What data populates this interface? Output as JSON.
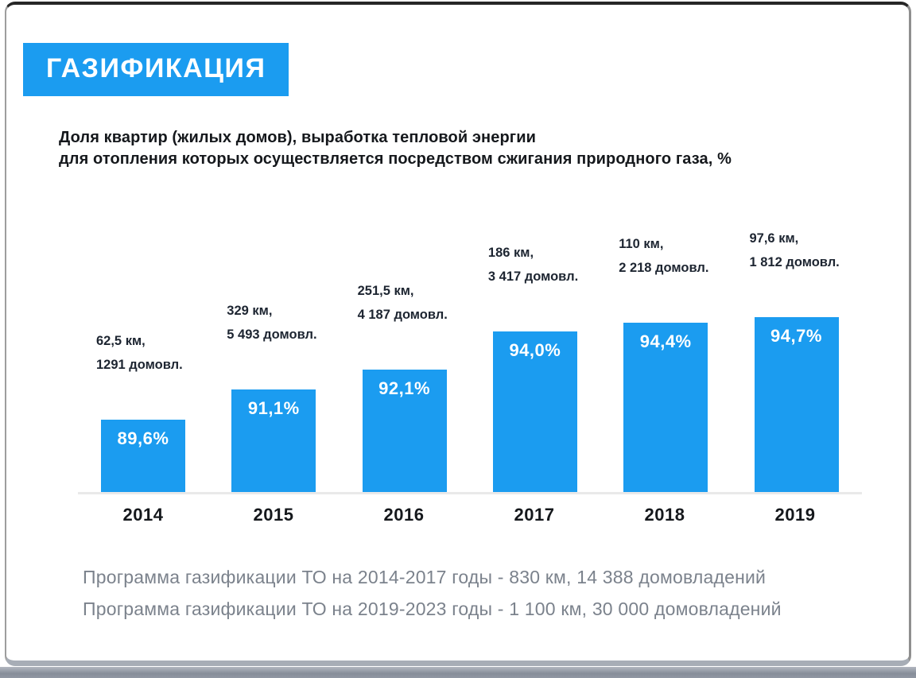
{
  "slide": {
    "badge": "ГАЗИФИКАЦИЯ",
    "subtitle": {
      "line1": "Доля квартир (жилых домов), выработка тепловой энергии",
      "line2": "для отопления которых осуществляется посредством сжигания природного газа, %"
    },
    "footer": {
      "line1": "Программа газификации ТО на 2014-2017 годы - 830 км, 14 388 домовладений",
      "line2": "Программа газификации ТО на 2019-2023 годы - 1 100 км, 30 000 домовладений"
    }
  },
  "colors": {
    "accent_blue": "#1b9cf0",
    "dark_text": "#15181c",
    "annotation_text": "#1d2531",
    "footer_gray": "#7b828c",
    "axis_gray": "#e9e9e9"
  },
  "chart_data": {
    "type": "bar",
    "title": "Доля квартир (жилых домов), выработка тепловой энергии для отопления которых осуществляется посредством сжигания природного газа, %",
    "categories": [
      "2014",
      "2015",
      "2016",
      "2017",
      "2018",
      "2019"
    ],
    "values": [
      89.6,
      91.1,
      92.1,
      94.0,
      94.4,
      94.7
    ],
    "bar_labels": [
      "89,6%",
      "91,1%",
      "92,1%",
      "94,0%",
      "94,4%",
      "94,7%"
    ],
    "annotations": [
      {
        "km": "62,5 км,",
        "households": "1291 домовл."
      },
      {
        "km": "329 км,",
        "households": "5 493  домовл."
      },
      {
        "km": "251,5 км,",
        "households": "4 187 домовл."
      },
      {
        "km": "186 км,",
        "households": "3 417 домовл."
      },
      {
        "km": "110 км,",
        "households": "2 218 домовл."
      },
      {
        "km": "97,6 км,",
        "households": "1 812 домовл."
      }
    ],
    "ylim": [
      86,
      96
    ],
    "xlabel": "",
    "ylabel": "",
    "grid": false,
    "legend": "none",
    "bar_color": "#1b9cf0",
    "value_suffix": "%"
  }
}
